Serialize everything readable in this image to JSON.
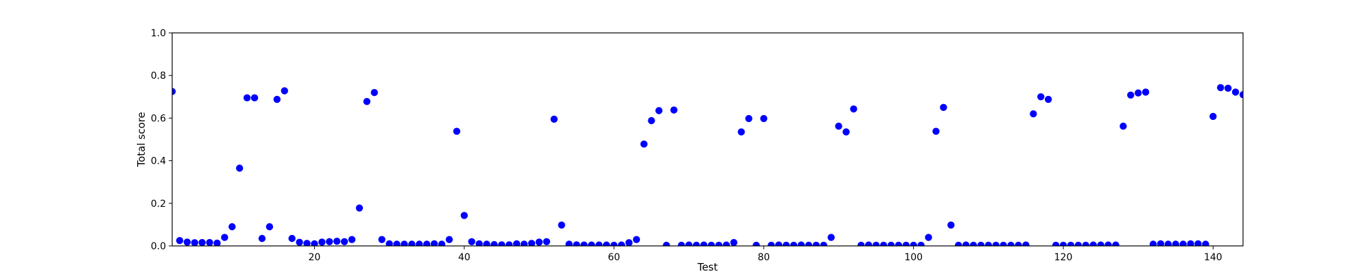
{
  "chart_data": {
    "type": "scatter",
    "title": "",
    "xlabel": "Test",
    "ylabel": "Total score",
    "xlim": [
      1,
      144
    ],
    "ylim": [
      0.0,
      1.0
    ],
    "xticks": [
      20,
      40,
      60,
      80,
      100,
      120,
      140
    ],
    "xtick_labels": [
      "20",
      "40",
      "60",
      "80",
      "100",
      "120",
      "140"
    ],
    "yticks": [
      0.0,
      0.2,
      0.4,
      0.6,
      0.8,
      1.0
    ],
    "ytick_labels": [
      "0.0",
      "0.2",
      "0.4",
      "0.6",
      "0.8",
      "1.0"
    ],
    "grid": false,
    "marker_color": "#0000ff",
    "series": [
      {
        "x": [
          1,
          2,
          3,
          4,
          5,
          6,
          7,
          8,
          9,
          10,
          11,
          12,
          13,
          14,
          15,
          16,
          17,
          18,
          19,
          20,
          21,
          22,
          23,
          24,
          25,
          26,
          27,
          28,
          29,
          30,
          31,
          32,
          33,
          34,
          35,
          36,
          37,
          38,
          39,
          40,
          41,
          42,
          43,
          44,
          45,
          46,
          47,
          48,
          49,
          50,
          51,
          52,
          53,
          54,
          55,
          56,
          57,
          58,
          59,
          60,
          61,
          62,
          63,
          64,
          65,
          66,
          67,
          68,
          69,
          70,
          71,
          72,
          73,
          74,
          75,
          76,
          77,
          78,
          79,
          80,
          81,
          82,
          83,
          84,
          85,
          86,
          87,
          88,
          89,
          90,
          91,
          92,
          93,
          94,
          95,
          96,
          97,
          98,
          99,
          100,
          101,
          102,
          103,
          104,
          105,
          106,
          107,
          108,
          109,
          110,
          111,
          112,
          113,
          114,
          115,
          116,
          117,
          118,
          119,
          120,
          121,
          122,
          123,
          124,
          125,
          126,
          127,
          128,
          129,
          130,
          131,
          132,
          133,
          134,
          135,
          136,
          137,
          138,
          139,
          140,
          141,
          142,
          143,
          144
        ],
        "y": [
          0.725,
          0.025,
          0.018,
          0.015,
          0.016,
          0.016,
          0.013,
          0.04,
          0.09,
          0.365,
          0.695,
          0.695,
          0.035,
          0.09,
          0.688,
          0.728,
          0.035,
          0.017,
          0.012,
          0.01,
          0.018,
          0.02,
          0.022,
          0.02,
          0.03,
          0.178,
          0.678,
          0.72,
          0.03,
          0.01,
          0.008,
          0.008,
          0.008,
          0.008,
          0.008,
          0.01,
          0.008,
          0.03,
          0.538,
          0.143,
          0.02,
          0.01,
          0.008,
          0.006,
          0.005,
          0.005,
          0.01,
          0.008,
          0.012,
          0.018,
          0.02,
          0.595,
          0.098,
          0.008,
          0.005,
          0.004,
          0.004,
          0.004,
          0.004,
          0.003,
          0.004,
          0.015,
          0.03,
          0.478,
          0.588,
          0.635,
          0.003,
          0.638,
          0.003,
          0.004,
          0.003,
          0.004,
          0.003,
          0.003,
          0.004,
          0.016,
          0.535,
          0.598,
          0.003,
          0.598,
          0.003,
          0.004,
          0.003,
          0.003,
          0.004,
          0.003,
          0.003,
          0.003,
          0.04,
          0.562,
          0.535,
          0.643,
          0.003,
          0.004,
          0.003,
          0.003,
          0.003,
          0.003,
          0.003,
          0.003,
          0.003,
          0.04,
          0.538,
          0.65,
          0.098,
          0.003,
          0.004,
          0.003,
          0.003,
          0.003,
          0.003,
          0.003,
          0.003,
          0.003,
          0.004,
          0.62,
          0.7,
          0.688,
          0.003,
          0.003,
          0.003,
          0.003,
          0.003,
          0.004,
          0.004,
          0.004,
          0.004,
          0.562,
          0.708,
          0.718,
          0.722,
          0.008,
          0.01,
          0.008,
          0.008,
          0.008,
          0.01,
          0.01,
          0.008,
          0.608,
          0.743,
          0.74,
          0.722,
          0.71
        ]
      }
    ]
  }
}
